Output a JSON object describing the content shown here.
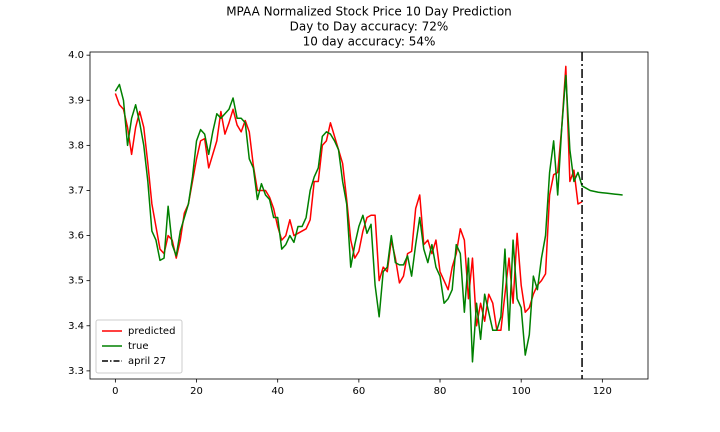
{
  "chart_data": {
    "type": "line",
    "title": "MPAA Normalized Stock Price 10 Day Prediction",
    "subtitle": [
      "Day to Day accuracy: 72%",
      "10 day accuracy: 54%"
    ],
    "x": [
      0,
      1,
      2,
      3,
      4,
      5,
      6,
      7,
      8,
      9,
      10,
      11,
      12,
      13,
      14,
      15,
      16,
      17,
      18,
      19,
      20,
      21,
      22,
      23,
      24,
      25,
      26,
      27,
      28,
      29,
      30,
      31,
      32,
      33,
      34,
      35,
      36,
      37,
      38,
      39,
      40,
      41,
      42,
      43,
      44,
      45,
      46,
      47,
      48,
      49,
      50,
      51,
      52,
      53,
      54,
      55,
      56,
      57,
      58,
      59,
      60,
      61,
      62,
      63,
      64,
      65,
      66,
      67,
      68,
      69,
      70,
      71,
      72,
      73,
      74,
      75,
      76,
      77,
      78,
      79,
      80,
      81,
      82,
      83,
      84,
      85,
      86,
      87,
      88,
      89,
      90,
      91,
      92,
      93,
      94,
      95,
      96,
      97,
      98,
      99,
      100,
      101,
      102,
      103,
      104,
      105,
      106,
      107,
      108,
      109,
      110,
      111,
      112,
      113,
      114,
      115,
      116,
      117,
      118,
      119,
      120,
      121,
      122,
      123,
      124,
      125
    ],
    "series": [
      {
        "name": "predicted",
        "color": "#ff0000",
        "values": [
          3.915,
          3.89,
          3.88,
          3.84,
          3.78,
          3.84,
          3.875,
          3.84,
          3.76,
          3.67,
          3.62,
          3.57,
          3.56,
          3.6,
          3.59,
          3.55,
          3.59,
          3.65,
          3.67,
          3.72,
          3.77,
          3.81,
          3.815,
          3.75,
          3.78,
          3.81,
          3.875,
          3.825,
          3.85,
          3.88,
          3.845,
          3.83,
          3.855,
          3.83,
          3.755,
          3.7,
          3.7,
          3.7,
          3.685,
          3.66,
          3.62,
          3.59,
          3.6,
          3.635,
          3.6,
          3.605,
          3.61,
          3.615,
          3.635,
          3.72,
          3.72,
          3.8,
          3.81,
          3.85,
          3.82,
          3.79,
          3.76,
          3.68,
          3.59,
          3.55,
          3.565,
          3.61,
          3.64,
          3.645,
          3.645,
          3.5,
          3.53,
          3.52,
          3.59,
          3.55,
          3.495,
          3.51,
          3.56,
          3.565,
          3.66,
          3.69,
          3.58,
          3.59,
          3.56,
          3.59,
          3.52,
          3.5,
          3.48,
          3.53,
          3.56,
          3.615,
          3.59,
          3.46,
          3.55,
          3.4,
          3.45,
          3.41,
          3.47,
          3.45,
          3.39,
          3.39,
          3.47,
          3.55,
          3.45,
          3.605,
          3.49,
          3.43,
          3.44,
          3.47,
          3.49,
          3.5,
          3.515,
          3.69,
          3.735,
          3.74,
          3.84,
          3.975,
          3.72,
          3.745,
          3.67,
          3.675,
          null,
          null,
          null,
          null,
          null,
          null,
          null,
          null,
          null,
          null
        ]
      },
      {
        "name": "true",
        "color": "#008000",
        "values": [
          3.92,
          3.935,
          3.9,
          3.8,
          3.86,
          3.89,
          3.85,
          3.8,
          3.72,
          3.61,
          3.59,
          3.545,
          3.55,
          3.665,
          3.58,
          3.555,
          3.61,
          3.64,
          3.67,
          3.73,
          3.81,
          3.835,
          3.825,
          3.78,
          3.83,
          3.87,
          3.86,
          3.87,
          3.88,
          3.905,
          3.86,
          3.86,
          3.85,
          3.77,
          3.75,
          3.68,
          3.715,
          3.69,
          3.68,
          3.64,
          3.64,
          3.57,
          3.58,
          3.6,
          3.585,
          3.62,
          3.62,
          3.64,
          3.7,
          3.73,
          3.75,
          3.82,
          3.83,
          3.825,
          3.81,
          3.79,
          3.72,
          3.67,
          3.53,
          3.58,
          3.62,
          3.645,
          3.605,
          3.625,
          3.49,
          3.42,
          3.52,
          3.53,
          3.6,
          3.54,
          3.535,
          3.535,
          3.555,
          3.51,
          3.58,
          3.64,
          3.57,
          3.54,
          3.58,
          3.53,
          3.51,
          3.45,
          3.46,
          3.48,
          3.58,
          3.56,
          3.43,
          3.55,
          3.32,
          3.45,
          3.37,
          3.47,
          3.43,
          3.39,
          3.39,
          3.42,
          3.57,
          3.39,
          3.59,
          3.46,
          3.44,
          3.335,
          3.38,
          3.51,
          3.48,
          3.55,
          3.6,
          3.74,
          3.81,
          3.69,
          3.84,
          3.955,
          3.79,
          3.72,
          3.74,
          3.71,
          3.705,
          3.7,
          3.698,
          3.696,
          3.695,
          3.694,
          3.693,
          3.692,
          3.691,
          3.69
        ]
      }
    ],
    "vline": {
      "x": 115,
      "label": "april 27",
      "color": "#000000"
    },
    "xlim": [
      -6.25,
      131.25
    ],
    "ylim": [
      3.282,
      4.007
    ],
    "xticks": [
      0,
      20,
      40,
      60,
      80,
      100,
      120
    ],
    "yticks": [
      3.3,
      3.4,
      3.5,
      3.6,
      3.7,
      3.8,
      3.9,
      {
        "value": 4,
        "label": "4.0"
      }
    ],
    "grid": false,
    "legend": "lower left"
  }
}
